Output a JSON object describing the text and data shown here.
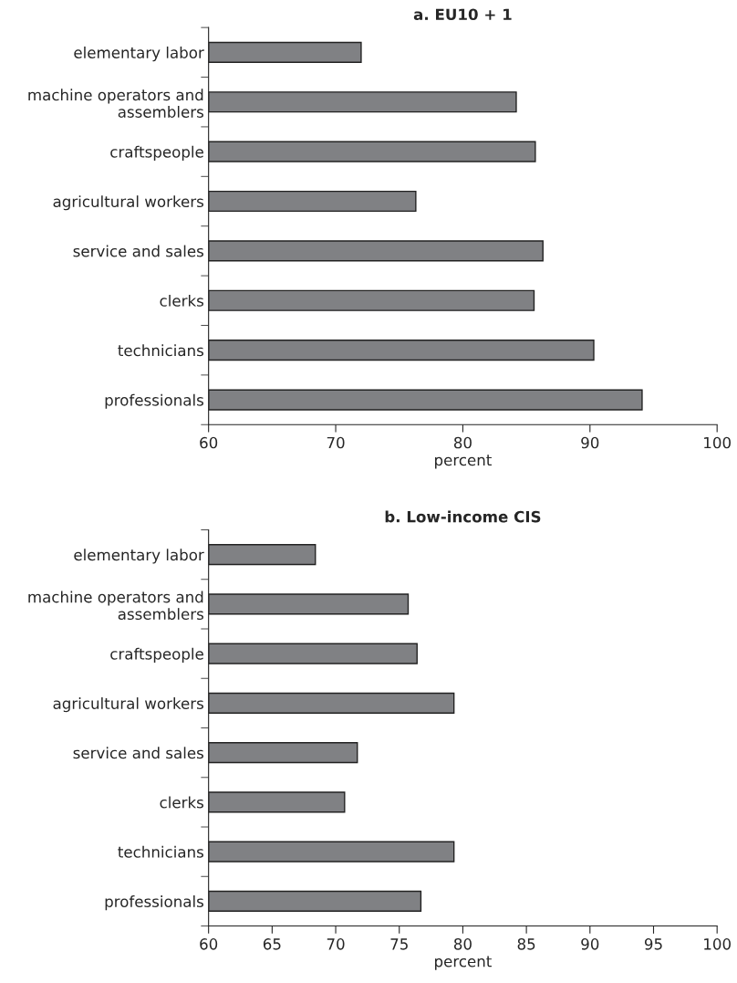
{
  "chart_data": [
    {
      "type": "bar",
      "orientation": "horizontal",
      "title": "a. EU10 + 1",
      "xlabel": "percent",
      "categories": [
        "elementary labor",
        "machine operators and\nassemblers",
        "craftspeople",
        "agricultural workers",
        "service and sales",
        "clerks",
        "technicians",
        "professionals"
      ],
      "values": [
        72.0,
        84.2,
        85.7,
        76.3,
        86.3,
        85.6,
        90.3,
        94.1
      ],
      "color": "#808184",
      "xlim": [
        60,
        100
      ],
      "xticks": [
        60,
        70,
        80,
        90,
        100
      ],
      "grid": false,
      "legend": false
    },
    {
      "type": "bar",
      "orientation": "horizontal",
      "title": "b. Low-income CIS",
      "xlabel": "percent",
      "categories": [
        "elementary labor",
        "machine operators and\nassemblers",
        "craftspeople",
        "agricultural workers",
        "service and sales",
        "clerks",
        "technicians",
        "professionals"
      ],
      "values": [
        68.4,
        75.7,
        76.4,
        79.3,
        71.7,
        70.7,
        79.3,
        76.7
      ],
      "color": "#808184",
      "xlim": [
        60,
        100
      ],
      "xticks": [
        60,
        65,
        70,
        75,
        80,
        85,
        90,
        95,
        100
      ],
      "grid": false,
      "legend": false
    }
  ]
}
